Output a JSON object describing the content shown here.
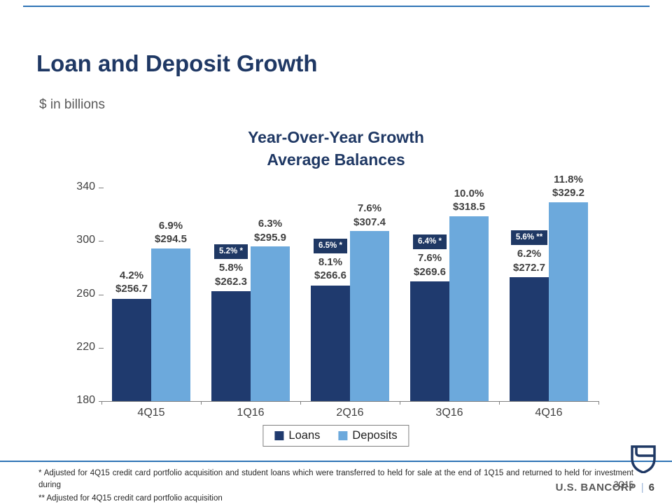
{
  "slide": {
    "title": "Loan and Deposit Growth",
    "subtitle": "$ in billions",
    "footnote1": "*  Adjusted for 4Q15 credit card portfolio acquisition and student loans which were transferred to held for sale at the end of 1Q15 and returned to held for investment during 3Q15",
    "footnote2": "** Adjusted for 4Q15 credit card portfolio acquisition",
    "footer_brand": "U.S. BANCORP",
    "footer_divider": "|",
    "page_number": "6"
  },
  "colors": {
    "accent_navy": "#1f3864",
    "loans_bar": "#1f3a6e",
    "deposits_bar": "#6ca9dc",
    "rule_blue": "#2e74b5"
  },
  "chart_data": {
    "type": "bar",
    "title": "Year-Over-Year Growth Average Balances",
    "title_lines": [
      "Year-Over-Year Growth",
      "Average Balances"
    ],
    "categories": [
      "4Q15",
      "1Q16",
      "2Q16",
      "3Q16",
      "4Q16"
    ],
    "ylim": [
      180,
      340
    ],
    "yticks": [
      340,
      300,
      260,
      220,
      180
    ],
    "grid": false,
    "legend_position": "bottom",
    "series": [
      {
        "name": "Loans",
        "color": "#1f3a6e",
        "values": [
          256.7,
          262.3,
          266.6,
          269.6,
          272.7
        ],
        "growth": [
          "4.2%",
          "5.8%",
          "8.1%",
          "7.6%",
          "6.2%"
        ],
        "value_labels": [
          "$256.7",
          "$262.3",
          "$266.6",
          "$269.6",
          "$272.7"
        ],
        "adjusted_growth": [
          null,
          "5.2% *",
          "6.5% *",
          "6.4% *",
          "5.6% **"
        ]
      },
      {
        "name": "Deposits",
        "color": "#6ca9dc",
        "values": [
          294.5,
          295.9,
          307.4,
          318.5,
          329.2
        ],
        "growth": [
          "6.9%",
          "6.3%",
          "7.6%",
          "10.0%",
          "11.8%"
        ],
        "value_labels": [
          "$294.5",
          "$295.9",
          "$307.4",
          "$318.5",
          "$329.2"
        ],
        "adjusted_growth": [
          null,
          null,
          null,
          null,
          null
        ]
      }
    ]
  }
}
